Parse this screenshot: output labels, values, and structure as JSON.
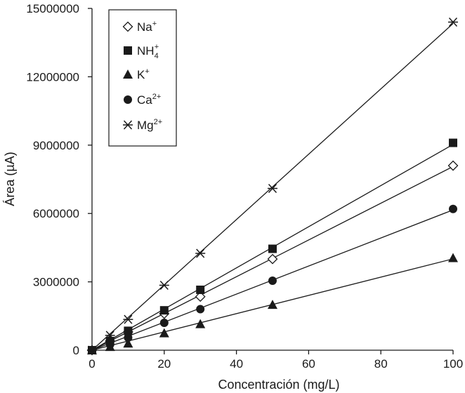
{
  "chart_data": {
    "type": "scatter",
    "title": "",
    "xlabel": "Concentración (mg/L)",
    "ylabel": "Área (µA)",
    "xlim": [
      0,
      100
    ],
    "ylim": [
      0,
      15000000
    ],
    "x_ticks": [
      0,
      20,
      40,
      60,
      80,
      100
    ],
    "y_ticks": [
      0,
      3000000,
      6000000,
      9000000,
      12000000,
      15000000
    ],
    "x_tick_labels": [
      "0",
      "20",
      "40",
      "60",
      "80",
      "100"
    ],
    "y_tick_labels": [
      "0",
      "3000000",
      "6000000",
      "9000000",
      "12000000",
      "15000000"
    ],
    "grid": false,
    "legend_position": "top-left",
    "series": [
      {
        "name": "Na+",
        "label": "Na",
        "sup": "+",
        "marker": "diamond-open",
        "x": [
          0,
          5,
          10,
          20,
          30,
          50,
          100
        ],
        "y": [
          0,
          400000,
          800000,
          1600000,
          2350000,
          4000000,
          8100000
        ]
      },
      {
        "name": "NH4+",
        "label": "NH",
        "sub": "4",
        "sup": "+",
        "marker": "square",
        "x": [
          0,
          5,
          10,
          20,
          30,
          50,
          100
        ],
        "y": [
          0,
          400000,
          850000,
          1750000,
          2650000,
          4450000,
          9100000
        ]
      },
      {
        "name": "K+",
        "label": "K",
        "sup": "+",
        "marker": "triangle",
        "x": [
          0,
          5,
          10,
          20,
          30,
          50,
          100
        ],
        "y": [
          0,
          150000,
          300000,
          750000,
          1150000,
          2000000,
          4050000
        ]
      },
      {
        "name": "Ca2+",
        "label": "Ca",
        "sup": "2+",
        "marker": "circle",
        "x": [
          0,
          5,
          10,
          20,
          30,
          50,
          100
        ],
        "y": [
          0,
          250000,
          550000,
          1200000,
          1800000,
          3050000,
          6200000
        ]
      },
      {
        "name": "Mg2+",
        "label": "Mg",
        "sup": "2+",
        "marker": "asterisk",
        "x": [
          0,
          5,
          10,
          20,
          30,
          50,
          100
        ],
        "y": [
          0,
          650000,
          1350000,
          2850000,
          4250000,
          7100000,
          14400000
        ]
      }
    ]
  }
}
